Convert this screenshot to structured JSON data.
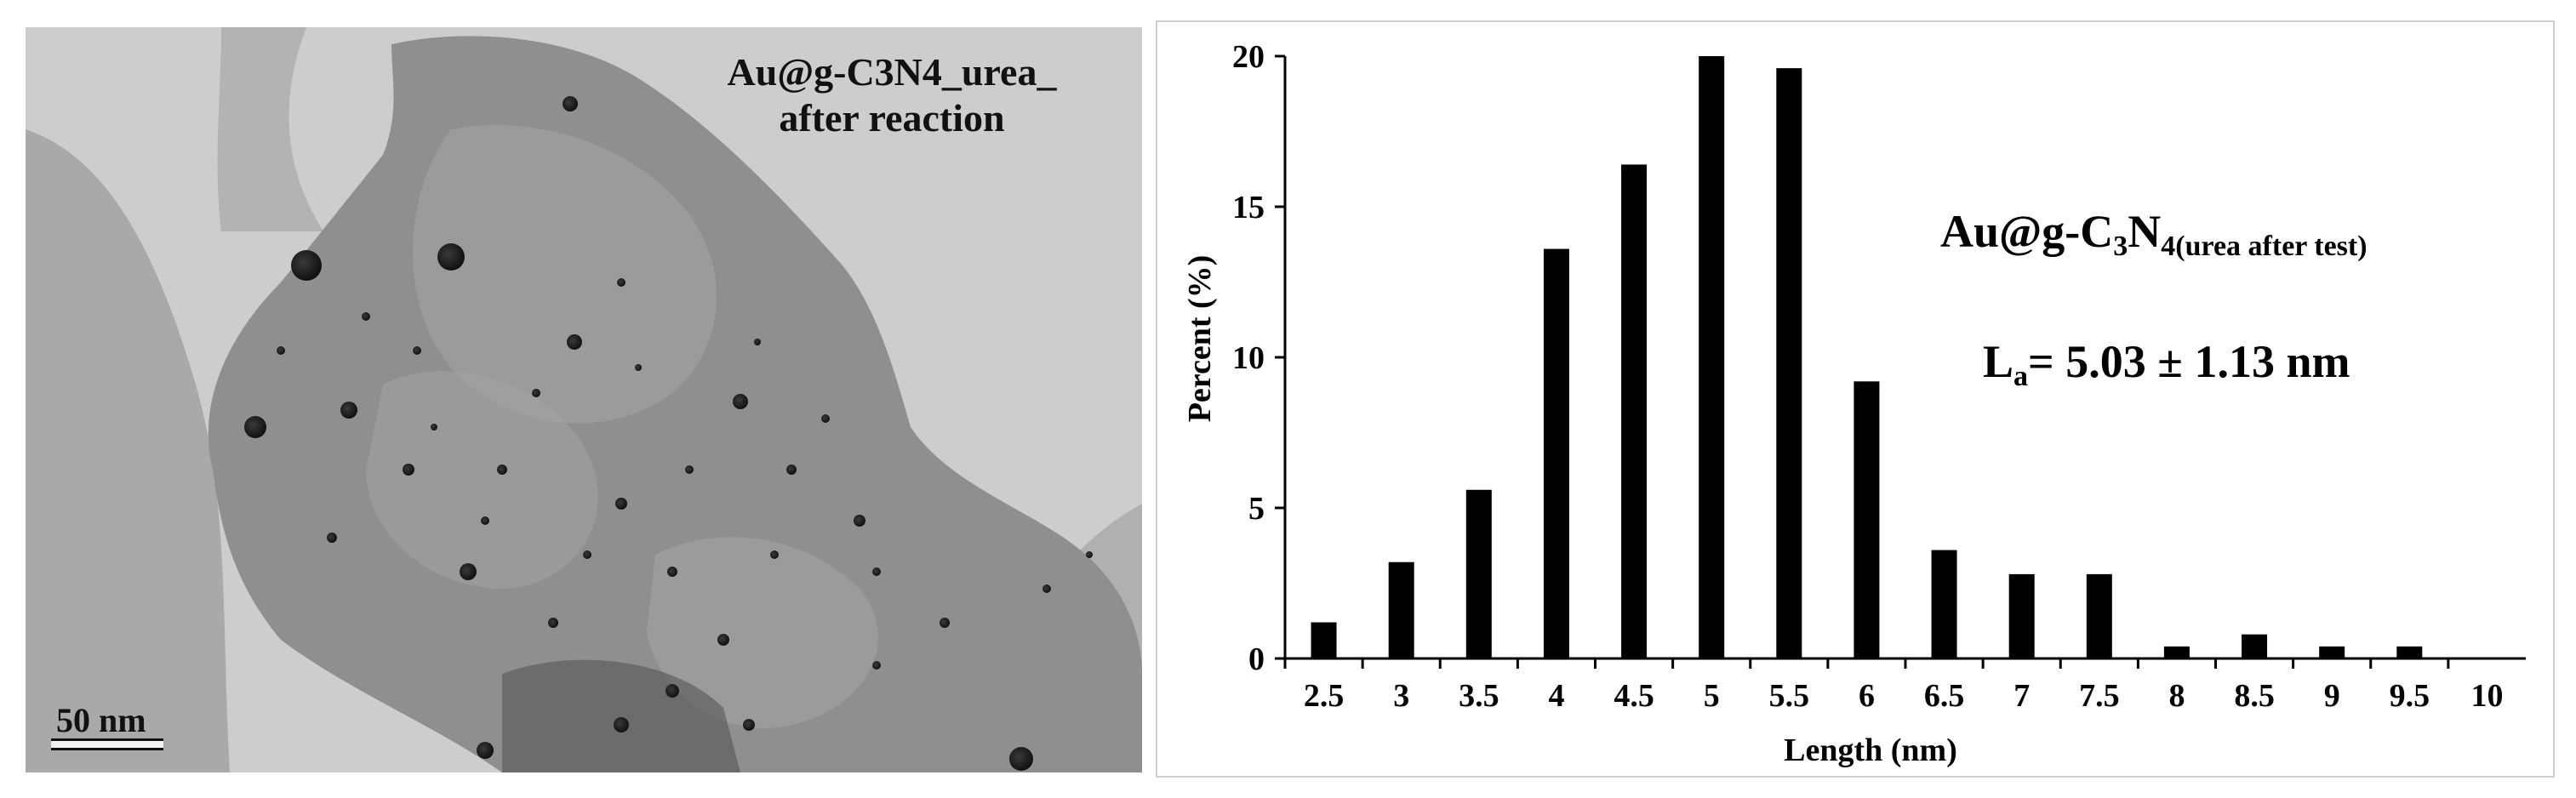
{
  "micrograph": {
    "title_line1": "Au@g-C3N4_urea_",
    "title_line2": "after reaction",
    "scale_bar_label": "50 nm"
  },
  "annotation": {
    "title_main": "Au@g-C",
    "title_sub1": "3",
    "title_mid": "N",
    "title_sub2": "4(urea after test)",
    "stat_main": "L",
    "stat_sub": "a",
    "stat_rest": "= 5.03 ± 1.13 nm"
  },
  "colors": {
    "bar": "#000000",
    "axis": "#000000",
    "panel_border": "#cfcfcf"
  },
  "chart_data": {
    "type": "bar",
    "xlabel": "Length (nm)",
    "ylabel": "Percent (%)",
    "categories": [
      "2.5",
      "3",
      "3.5",
      "4",
      "4.5",
      "5",
      "5.5",
      "6",
      "6.5",
      "7",
      "7.5",
      "8",
      "8.5",
      "9",
      "9.5",
      "10"
    ],
    "values": [
      1.2,
      3.2,
      5.6,
      13.6,
      16.4,
      20.0,
      19.6,
      9.2,
      3.6,
      2.8,
      2.8,
      0.4,
      0.8,
      0.4,
      0.4,
      0
    ],
    "ylim": [
      0,
      20
    ],
    "yticks": [
      0,
      5,
      10,
      15,
      20
    ],
    "grid": false,
    "legend": "none"
  }
}
